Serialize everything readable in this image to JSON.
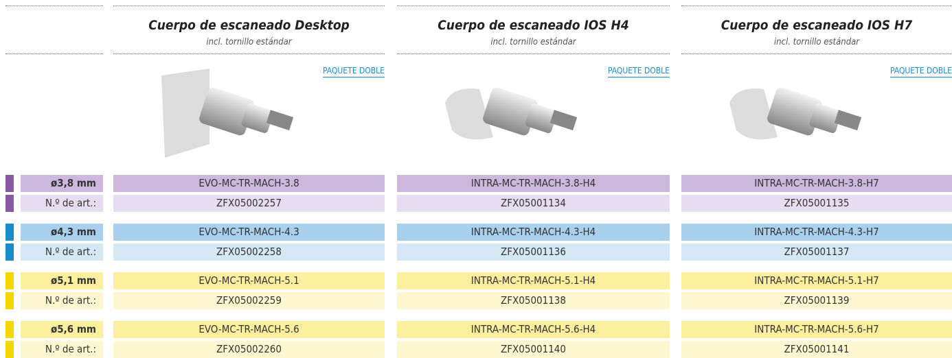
{
  "columns": [
    {
      "title": "Cuerpo de escaneado Desktop",
      "subtitle": "incl. tornillo estándar",
      "link": "PAQUETE DOBLE"
    },
    {
      "title": "Cuerpo de escaneado IOS H4",
      "subtitle": "incl. tornillo estándar",
      "link": "PAQUETE DOBLE"
    },
    {
      "title": "Cuerpo de escaneado IOS H7",
      "subtitle": "incl. tornillo estándar",
      "link": "PAQUETE DOBLE"
    }
  ],
  "groups": [
    {
      "diameter": "ø3,8 mm",
      "art_label": "N.º de art.:",
      "codes": [
        "EVO-MC-TR-MACH-3.8",
        "INTRA-MC-TR-MACH-3.8-H4",
        "INTRA-MC-TR-MACH-3.8-H7"
      ],
      "arts": [
        "ZFX05002257",
        "ZFX05001134",
        "ZFX05001135"
      ]
    },
    {
      "diameter": "ø4,3 mm",
      "art_label": "N.º de art.:",
      "codes": [
        "EVO-MC-TR-MACH-4.3",
        "INTRA-MC-TR-MACH-4.3-H4",
        "INTRA-MC-TR-MACH-4.3-H7"
      ],
      "arts": [
        "ZFX05002258",
        "ZFX05001136",
        "ZFX05001137"
      ]
    },
    {
      "diameter": "ø5,1 mm",
      "art_label": "N.º de art.:",
      "codes": [
        "EVO-MC-TR-MACH-5.1",
        "INTRA-MC-TR-MACH-5.1-H4",
        "INTRA-MC-TR-MACH-5.1-H7"
      ],
      "arts": [
        "ZFX05002259",
        "ZFX05001138",
        "ZFX05001139"
      ]
    },
    {
      "diameter": "ø5,6 mm",
      "art_label": "N.º de art.:",
      "codes": [
        "EVO-MC-TR-MACH-5.6",
        "INTRA-MC-TR-MACH-5.6-H4",
        "INTRA-MC-TR-MACH-5.6-H7"
      ],
      "arts": [
        "ZFX05002260",
        "ZFX05001140",
        "ZFX05001141"
      ]
    }
  ]
}
